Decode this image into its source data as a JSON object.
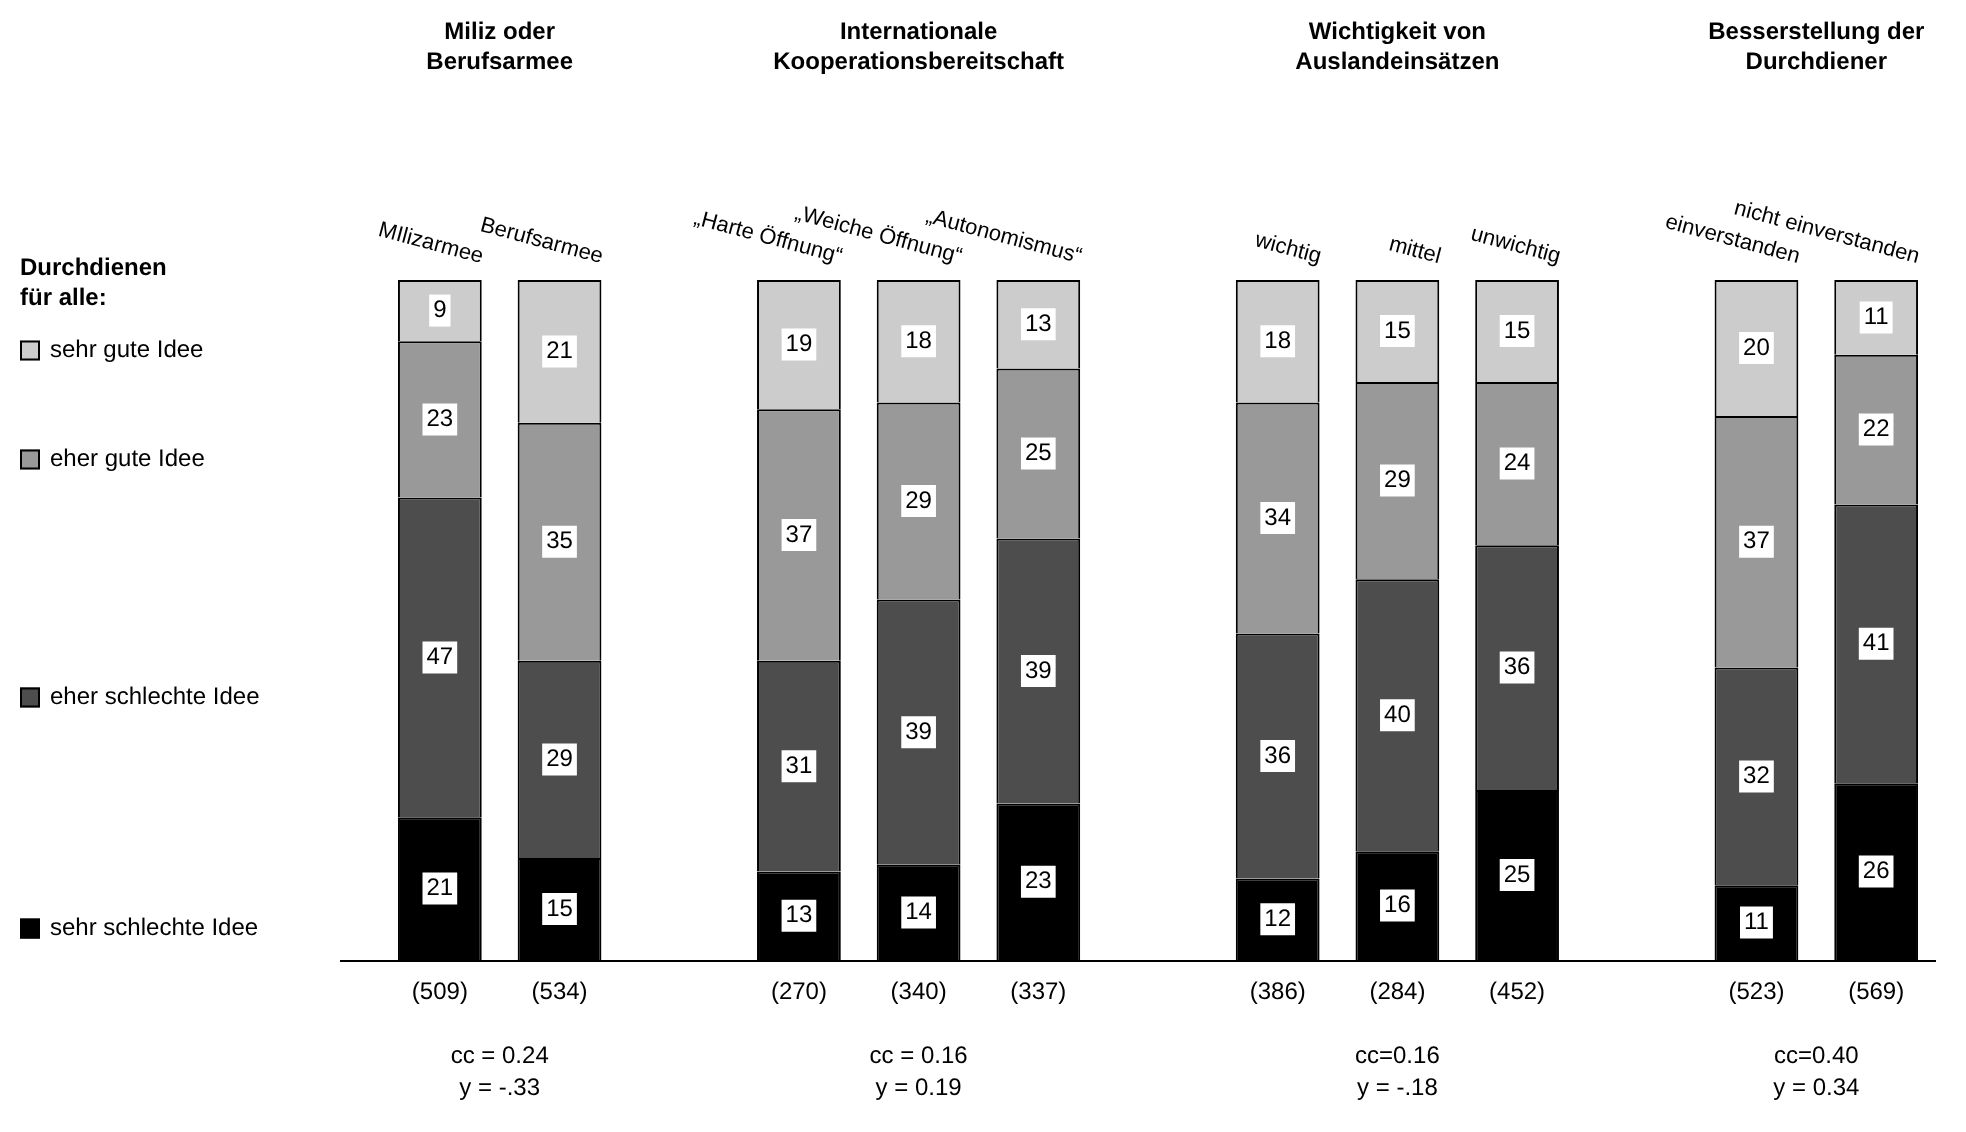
{
  "chart_data": {
    "type": "bar",
    "stacked": true,
    "data_labels": true,
    "legend": "left",
    "legend_title": "Durchdienen für alle:",
    "categories": [
      "MIlizarmee",
      "Berufsarmee",
      null,
      "„Harte Öffnung“",
      "„Weiche Öffnung“",
      "„Autonomismus“",
      null,
      "wichtig",
      "mittel",
      "unwichtig",
      null,
      "einverstanden",
      "nicht einverstanden"
    ],
    "series": [
      {
        "name": "sehr schlechte Idee",
        "color": "#000000",
        "values": [
          21,
          15,
          null,
          13,
          14,
          23,
          null,
          12,
          16,
          25,
          null,
          11,
          26
        ]
      },
      {
        "name": "eher schlechte Idee",
        "color": "#4d4d4d",
        "values": [
          47,
          29,
          null,
          31,
          39,
          39,
          null,
          36,
          40,
          36,
          null,
          32,
          41
        ]
      },
      {
        "name": "eher gute Idee",
        "color": "#999999",
        "values": [
          23,
          35,
          null,
          37,
          29,
          25,
          null,
          34,
          29,
          24,
          null,
          37,
          22
        ]
      },
      {
        "name": "sehr gute Idee",
        "color": "#cccccc",
        "values": [
          9,
          21,
          null,
          19,
          18,
          13,
          null,
          18,
          15,
          15,
          null,
          20,
          11
        ]
      }
    ],
    "annotations": [
      "Miliz oder Berufsarmee",
      "Internationale Kooperationsbereitschaft",
      "Wichtigkeit von Auslandeinsätzen",
      "Besserstellung der Durchdiener",
      "(509)",
      "(534)",
      "(270)",
      "(340)",
      "(337)",
      "(386)",
      "(284)",
      "(452)",
      "(523)",
      "(569)",
      "cc = 0.24",
      "y = -.33",
      "cc = 0.16",
      "y = 0.19",
      "cc=0.16",
      "y = -.18",
      "cc=0.40",
      "y = 0.34"
    ]
  }
}
